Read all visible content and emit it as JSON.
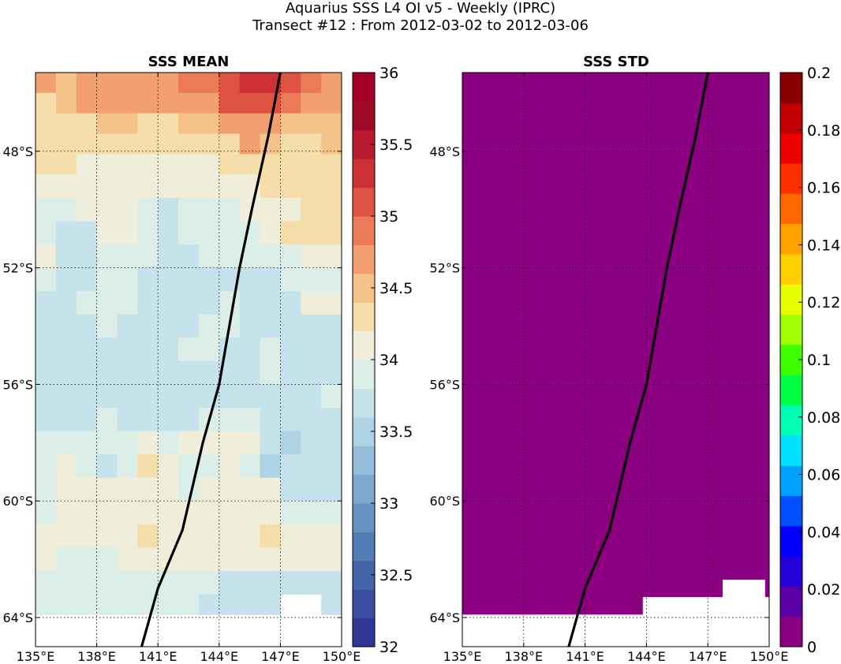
{
  "header": {
    "title_line1": "Aquarius SSS L4 OI v5 - Weekly (IPRC)",
    "title_line2": "Transect #12 : From 2012-03-02 to 2012-03-06"
  },
  "chart_data": [
    {
      "type": "heatmap",
      "title": "SSS MEAN",
      "xlim": [
        135,
        150
      ],
      "ylim": [
        -65,
        -45.3
      ],
      "x_ticks": [
        "135°E",
        "138°E",
        "141°E",
        "144°E",
        "147°E",
        "150°E"
      ],
      "x_tick_values": [
        135,
        138,
        141,
        144,
        147,
        150
      ],
      "y_ticks": [
        "48°S",
        "52°S",
        "56°S",
        "60°S",
        "64°S"
      ],
      "y_tick_values": [
        -48,
        -52,
        -56,
        -60,
        -64
      ],
      "grid": true,
      "colorbar": {
        "min": 32,
        "max": 36,
        "ticks": [
          "32",
          "32.5",
          "33",
          "33.5",
          "34",
          "34.5",
          "35",
          "35.5",
          "36"
        ],
        "tick_values": [
          32,
          32.5,
          33,
          33.5,
          34,
          34.5,
          35,
          35.5,
          36
        ],
        "colors": [
          "#313695",
          "#3a4d9f",
          "#4565aa",
          "#527db6",
          "#6792c1",
          "#7ea8ce",
          "#96bdda",
          "#aed3e4",
          "#c6e2ea",
          "#dceee8",
          "#eeeedb",
          "#f5deaa",
          "#f5c38a",
          "#f2a070",
          "#ea7a58",
          "#de5242",
          "#cc2f34",
          "#b81a2e",
          "#9f0a28",
          "#a50026"
        ]
      },
      "field_rows_north_to_south": [
        {
          "lat_top": -45.3,
          "lat_bottom": -46.0,
          "values": [
            34.6,
            34.5,
            34.6,
            34.6,
            34.7,
            34.7,
            34.8,
            34.9,
            34.9,
            35.1,
            35.2,
            35.2,
            35.0,
            34.9,
            34.8
          ]
        },
        {
          "lat_top": -46.0,
          "lat_bottom": -46.7,
          "values": [
            34.4,
            34.5,
            34.6,
            34.6,
            34.6,
            34.6,
            34.7,
            34.7,
            34.8,
            35.0,
            35.1,
            35.1,
            34.9,
            34.7,
            34.7
          ]
        },
        {
          "lat_top": -46.7,
          "lat_bottom": -47.4,
          "values": [
            34.4,
            34.4,
            34.4,
            34.5,
            34.5,
            34.3,
            34.4,
            34.5,
            34.5,
            34.6,
            34.8,
            34.7,
            34.5,
            34.5,
            34.5
          ]
        },
        {
          "lat_top": -47.4,
          "lat_bottom": -48.1,
          "values": [
            34.4,
            34.3,
            34.2,
            34.2,
            34.2,
            34.2,
            34.2,
            34.2,
            34.3,
            34.3,
            34.6,
            34.5,
            34.4,
            34.3,
            34.5
          ]
        },
        {
          "lat_top": -48.1,
          "lat_bottom": -48.8,
          "values": [
            34.3,
            34.2,
            34.0,
            34.1,
            34.1,
            34.1,
            34.0,
            34.1,
            34.1,
            34.2,
            34.3,
            34.4,
            34.3,
            34.3,
            34.4
          ]
        },
        {
          "lat_top": -48.8,
          "lat_bottom": -49.6,
          "values": [
            34.1,
            34.1,
            34.0,
            34.0,
            34.0,
            34.0,
            34.0,
            34.0,
            34.0,
            34.1,
            34.1,
            34.2,
            34.2,
            34.3,
            34.4
          ]
        },
        {
          "lat_top": -49.6,
          "lat_bottom": -50.4,
          "values": [
            33.9,
            33.9,
            34.1,
            34.1,
            34.0,
            33.9,
            33.8,
            33.9,
            33.9,
            33.9,
            34.0,
            34.0,
            34.1,
            34.2,
            34.2
          ]
        },
        {
          "lat_top": -50.4,
          "lat_bottom": -51.2,
          "values": [
            33.9,
            33.7,
            33.8,
            34.1,
            34.1,
            33.9,
            33.8,
            33.9,
            33.9,
            33.9,
            33.9,
            34.0,
            34.2,
            34.3,
            34.4
          ]
        },
        {
          "lat_top": -51.2,
          "lat_bottom": -52.0,
          "values": [
            34.0,
            33.8,
            33.8,
            33.9,
            33.9,
            33.9,
            33.7,
            33.8,
            33.9,
            33.9,
            33.9,
            33.9,
            33.9,
            34.0,
            34.0
          ]
        },
        {
          "lat_top": -52.0,
          "lat_bottom": -52.8,
          "values": [
            33.9,
            33.8,
            33.8,
            33.9,
            33.9,
            33.8,
            33.8,
            33.7,
            33.8,
            33.8,
            33.8,
            33.7,
            33.9,
            33.9,
            33.9
          ]
        },
        {
          "lat_top": -52.8,
          "lat_bottom": -53.6,
          "values": [
            33.8,
            33.8,
            33.9,
            33.9,
            33.9,
            33.8,
            33.8,
            33.7,
            33.8,
            33.9,
            33.8,
            33.7,
            33.8,
            34.0,
            34.0
          ]
        },
        {
          "lat_top": -53.6,
          "lat_bottom": -54.4,
          "values": [
            33.7,
            33.7,
            33.8,
            33.9,
            33.8,
            33.8,
            33.8,
            33.7,
            33.9,
            33.9,
            33.8,
            33.8,
            33.7,
            33.7,
            33.7
          ]
        },
        {
          "lat_top": -54.4,
          "lat_bottom": -55.2,
          "values": [
            33.8,
            33.7,
            33.8,
            33.7,
            33.7,
            33.8,
            33.8,
            33.9,
            33.9,
            33.7,
            33.8,
            33.9,
            33.8,
            33.7,
            33.7
          ]
        },
        {
          "lat_top": -55.2,
          "lat_bottom": -56.0,
          "values": [
            33.8,
            33.8,
            33.8,
            33.6,
            33.7,
            33.7,
            33.7,
            33.7,
            33.6,
            33.8,
            33.8,
            33.9,
            33.8,
            33.8,
            33.8
          ]
        },
        {
          "lat_top": -56.0,
          "lat_bottom": -56.8,
          "values": [
            33.7,
            33.6,
            33.8,
            33.7,
            33.7,
            33.7,
            33.6,
            33.6,
            33.7,
            33.6,
            33.7,
            33.8,
            33.8,
            33.8,
            33.9
          ]
        },
        {
          "lat_top": -56.8,
          "lat_bottom": -57.6,
          "values": [
            33.7,
            33.7,
            33.8,
            33.9,
            33.8,
            33.8,
            33.8,
            33.8,
            33.9,
            33.9,
            33.9,
            33.6,
            33.6,
            33.7,
            33.8
          ]
        },
        {
          "lat_top": -57.6,
          "lat_bottom": -58.4,
          "values": [
            33.9,
            33.9,
            33.9,
            33.9,
            33.9,
            34.0,
            33.9,
            34.0,
            34.0,
            34.0,
            34.0,
            33.6,
            33.5,
            33.7,
            33.8
          ]
        },
        {
          "lat_top": -58.4,
          "lat_bottom": -59.2,
          "values": [
            33.9,
            34.0,
            33.9,
            33.8,
            33.9,
            34.2,
            34.0,
            33.9,
            33.9,
            34.0,
            33.9,
            33.5,
            33.6,
            33.6,
            33.7
          ]
        },
        {
          "lat_top": -59.2,
          "lat_bottom": -60.0,
          "values": [
            33.9,
            34.0,
            34.1,
            34.1,
            34.0,
            34.0,
            34.0,
            33.9,
            34.1,
            34.1,
            34.1,
            34.0,
            33.7,
            33.7,
            33.8
          ]
        },
        {
          "lat_top": -60.0,
          "lat_bottom": -60.8,
          "values": [
            33.9,
            34.1,
            34.1,
            34.1,
            34.0,
            34.0,
            34.0,
            34.0,
            34.1,
            34.0,
            34.1,
            34.1,
            33.9,
            33.9,
            33.9
          ]
        },
        {
          "lat_top": -60.8,
          "lat_bottom": -61.6,
          "values": [
            34.1,
            34.1,
            34.0,
            34.0,
            34.0,
            34.3,
            34.1,
            34.0,
            34.0,
            34.1,
            34.1,
            34.3,
            34.0,
            34.0,
            34.0
          ]
        },
        {
          "lat_top": -61.6,
          "lat_bottom": -62.4,
          "values": [
            34.0,
            33.9,
            33.9,
            33.9,
            34.1,
            34.1,
            34.1,
            34.1,
            34.1,
            34.1,
            34.1,
            34.1,
            34.0,
            34.0,
            34.0
          ]
        },
        {
          "lat_top": -62.4,
          "lat_bottom": -63.2,
          "values": [
            33.9,
            33.9,
            33.9,
            33.9,
            33.9,
            33.9,
            33.9,
            33.9,
            33.9,
            33.8,
            33.8,
            33.8,
            33.8,
            33.8,
            33.8
          ]
        },
        {
          "lat_top": -63.2,
          "lat_bottom": -63.9,
          "values": [
            33.9,
            33.9,
            33.9,
            33.9,
            33.9,
            33.9,
            33.9,
            33.9,
            33.8,
            33.8,
            33.8,
            33.8,
            null,
            null,
            33.8
          ]
        },
        {
          "lat_top": -63.9,
          "lat_bottom": -65.0,
          "values": [
            null,
            null,
            null,
            null,
            null,
            null,
            null,
            null,
            null,
            null,
            null,
            null,
            null,
            null,
            null
          ]
        }
      ],
      "transect": {
        "lon": [
          140.2,
          141.0,
          142.2,
          143.2,
          144.0,
          145.0,
          145.6,
          146.4,
          147.0
        ],
        "lat": [
          -65.0,
          -63.0,
          -61.0,
          -58.0,
          -56.0,
          -52.0,
          -50.0,
          -47.5,
          -45.3
        ]
      }
    },
    {
      "type": "heatmap",
      "title": "SSS STD",
      "xlim": [
        135,
        150
      ],
      "ylim": [
        -65,
        -45.3
      ],
      "x_ticks": [
        "135°E",
        "138°E",
        "141°E",
        "144°E",
        "147°E",
        "150°E"
      ],
      "x_tick_values": [
        135,
        138,
        141,
        144,
        147,
        150
      ],
      "y_ticks": [
        "48°S",
        "52°S",
        "56°S",
        "60°S",
        "64°S"
      ],
      "y_tick_values": [
        -48,
        -52,
        -56,
        -60,
        -64
      ],
      "grid": true,
      "fill_value": 0,
      "fill_color": "#8b0080",
      "land_mask_southern_edge": [
        {
          "lon_from": 135.0,
          "lon_to": 143.8,
          "lat": -63.9
        },
        {
          "lon_from": 143.8,
          "lon_to": 147.7,
          "lat": -63.3
        },
        {
          "lon_from": 147.7,
          "lon_to": 149.8,
          "lat": -62.7
        },
        {
          "lon_from": 149.8,
          "lon_to": 150.0,
          "lat": -63.3
        }
      ],
      "colorbar": {
        "min": 0,
        "max": 0.2,
        "ticks": [
          "0",
          "0.02",
          "0.04",
          "0.06",
          "0.08",
          "0.1",
          "0.12",
          "0.14",
          "0.16",
          "0.18",
          "0.2"
        ],
        "tick_values": [
          0,
          0.02,
          0.04,
          0.06,
          0.08,
          0.1,
          0.12,
          0.14,
          0.16,
          0.18,
          0.2
        ],
        "colors": [
          "#8b0080",
          "#5a00a8",
          "#2400d8",
          "#0000ff",
          "#0050ff",
          "#00a0ff",
          "#00e0ff",
          "#00ffb0",
          "#00ff40",
          "#40ff00",
          "#a0ff00",
          "#e8ff00",
          "#ffd000",
          "#ffa000",
          "#ff6a00",
          "#ff3000",
          "#ee0000",
          "#c00000",
          "#8a0000"
        ]
      },
      "transect": {
        "lon": [
          140.2,
          141.0,
          142.2,
          143.2,
          144.0,
          145.0,
          145.6,
          146.4,
          147.0
        ],
        "lat": [
          -65.0,
          -63.0,
          -61.0,
          -58.0,
          -56.0,
          -52.0,
          -50.0,
          -47.5,
          -45.3
        ]
      }
    }
  ]
}
